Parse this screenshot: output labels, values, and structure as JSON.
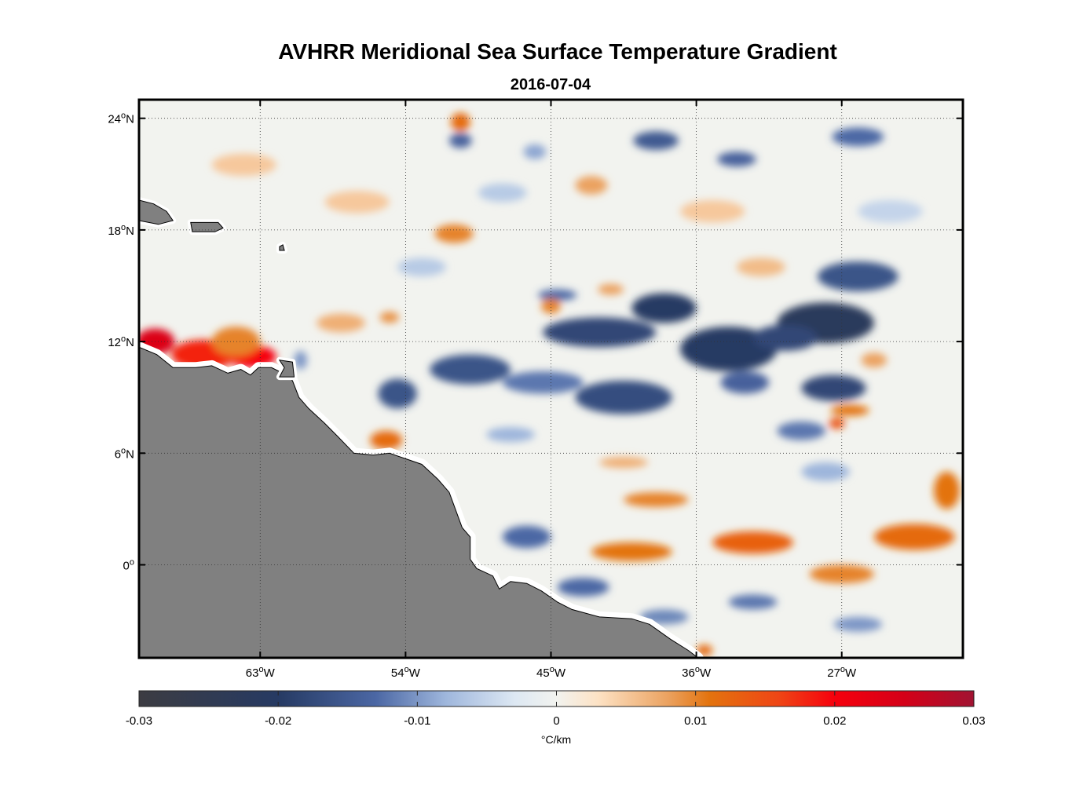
{
  "title": "AVHRR Meridional Sea Surface Temperature Gradient",
  "subtitle": "2016-07-04",
  "map": {
    "lon_range": [
      -70.5,
      -19.5
    ],
    "lat_range": [
      -5,
      25
    ],
    "lon_ticks": [
      {
        "value": -63,
        "label": "63",
        "suffix": "W"
      },
      {
        "value": -54,
        "label": "54",
        "suffix": "W"
      },
      {
        "value": -45,
        "label": "45",
        "suffix": "W"
      },
      {
        "value": -36,
        "label": "36",
        "suffix": "W"
      },
      {
        "value": -27,
        "label": "27",
        "suffix": "W"
      }
    ],
    "lat_ticks": [
      {
        "value": 24,
        "label": "24",
        "suffix": "N"
      },
      {
        "value": 18,
        "label": "18",
        "suffix": "N"
      },
      {
        "value": 12,
        "label": "12",
        "suffix": "N"
      },
      {
        "value": 6,
        "label": "6",
        "suffix": "N"
      },
      {
        "value": 0,
        "label": "0",
        "suffix": ""
      }
    ],
    "degree_symbol": "o",
    "land_color": "#808080",
    "coast_outline": "#000000",
    "grid_style": "dotted",
    "land_coast_lonlat": [
      [
        -70.5,
        11.7
      ],
      [
        -69.4,
        11.3
      ],
      [
        -68.4,
        10.6
      ],
      [
        -67,
        10.6
      ],
      [
        -66,
        10.7
      ],
      [
        -65,
        10.3
      ],
      [
        -64.2,
        10.5
      ],
      [
        -63.6,
        10.2
      ],
      [
        -63.1,
        10.6
      ],
      [
        -62.3,
        10.6
      ],
      [
        -61.6,
        10.3
      ],
      [
        -61.0,
        9.9
      ],
      [
        -60.6,
        9.0
      ],
      [
        -60.0,
        8.4
      ],
      [
        -59.0,
        7.6
      ],
      [
        -58.2,
        6.9
      ],
      [
        -57.2,
        6.0
      ],
      [
        -56.0,
        5.9
      ],
      [
        -55.0,
        6.0
      ],
      [
        -54.0,
        5.7
      ],
      [
        -53.0,
        5.4
      ],
      [
        -52.0,
        4.6
      ],
      [
        -51.3,
        3.9
      ],
      [
        -50.5,
        2.0
      ],
      [
        -50.0,
        1.5
      ],
      [
        -50.0,
        0.3
      ],
      [
        -49.6,
        -0.2
      ],
      [
        -48.6,
        -0.6
      ],
      [
        -48.2,
        -1.3
      ],
      [
        -47.5,
        -0.9
      ],
      [
        -46.5,
        -1.0
      ],
      [
        -45.6,
        -1.4
      ],
      [
        -44.6,
        -2.0
      ],
      [
        -43.7,
        -2.4
      ],
      [
        -42.0,
        -2.8
      ],
      [
        -40.0,
        -2.9
      ],
      [
        -38.9,
        -3.2
      ],
      [
        -37.6,
        -4.0
      ],
      [
        -36.5,
        -4.6
      ],
      [
        -35.9,
        -5.0
      ],
      [
        -70.5,
        -5.0
      ]
    ],
    "islands_lonlat": [
      [
        [
          -70.5,
          18.5
        ],
        [
          -69.3,
          18.3
        ],
        [
          -68.4,
          18.5
        ],
        [
          -68.8,
          19.0
        ],
        [
          -69.6,
          19.4
        ],
        [
          -70.5,
          19.6
        ]
      ],
      [
        [
          -67.3,
          18.4
        ],
        [
          -65.6,
          18.4
        ],
        [
          -65.3,
          18.1
        ],
        [
          -65.8,
          17.9
        ],
        [
          -67.2,
          17.9
        ]
      ],
      [
        [
          -61.8,
          17.1
        ],
        [
          -61.6,
          17.2
        ],
        [
          -61.5,
          16.9
        ],
        [
          -61.8,
          16.9
        ]
      ],
      [
        [
          -61.8,
          11.0
        ],
        [
          -61.0,
          10.9
        ],
        [
          -60.9,
          10.1
        ],
        [
          -61.8,
          10.1
        ],
        [
          -61.5,
          10.6
        ]
      ]
    ],
    "anomalies": [
      {
        "lon": -66.5,
        "lat": 11.3,
        "v": 0.018,
        "rlon": 2.0,
        "rlat": 0.8
      },
      {
        "lon": -69.5,
        "lat": 12.0,
        "v": 0.024,
        "rlon": 1.2,
        "rlat": 0.7
      },
      {
        "lon": -63.5,
        "lat": 11.2,
        "v": 0.02,
        "rlon": 1.5,
        "rlat": 0.6
      },
      {
        "lon": -64.5,
        "lat": 12.0,
        "v": 0.01,
        "rlon": 1.5,
        "rlat": 0.8
      },
      {
        "lon": -55.2,
        "lat": 6.7,
        "v": 0.012,
        "rlon": 1.0,
        "rlat": 0.5
      },
      {
        "lon": -50.6,
        "lat": 23.8,
        "v": 0.012,
        "rlon": 0.6,
        "rlat": 0.5
      },
      {
        "lon": -50.6,
        "lat": 22.8,
        "v": -0.014,
        "rlon": 0.7,
        "rlat": 0.4
      },
      {
        "lon": -51.0,
        "lat": 17.8,
        "v": 0.01,
        "rlon": 1.2,
        "rlat": 0.5
      },
      {
        "lon": -42.5,
        "lat": 20.4,
        "v": 0.008,
        "rlon": 1.0,
        "rlat": 0.5
      },
      {
        "lon": -41.3,
        "lat": 14.8,
        "v": 0.008,
        "rlon": 0.8,
        "rlat": 0.3
      },
      {
        "lon": -44.6,
        "lat": 14.5,
        "v": -0.013,
        "rlon": 1.2,
        "rlat": 0.3
      },
      {
        "lon": -45.0,
        "lat": 13.9,
        "v": 0.01,
        "rlon": 0.6,
        "rlat": 0.4
      },
      {
        "lon": -55.0,
        "lat": 13.3,
        "v": 0.009,
        "rlon": 0.6,
        "rlat": 0.3
      },
      {
        "lon": -38.5,
        "lat": 22.8,
        "v": -0.015,
        "rlon": 1.4,
        "rlat": 0.5
      },
      {
        "lon": -33.5,
        "lat": 21.8,
        "v": -0.014,
        "rlon": 1.2,
        "rlat": 0.4
      },
      {
        "lon": -26.0,
        "lat": 23.0,
        "v": -0.013,
        "rlon": 1.6,
        "rlat": 0.5
      },
      {
        "lon": -46.0,
        "lat": 22.2,
        "v": -0.009,
        "rlon": 0.7,
        "rlat": 0.4
      },
      {
        "lon": -42.0,
        "lat": 12.5,
        "v": -0.018,
        "rlon": 3.5,
        "rlat": 0.8
      },
      {
        "lon": -38.0,
        "lat": 13.8,
        "v": -0.02,
        "rlon": 2.0,
        "rlat": 0.8
      },
      {
        "lon": -28.0,
        "lat": 13.0,
        "v": -0.022,
        "rlon": 3.0,
        "rlat": 1.1
      },
      {
        "lon": -34.0,
        "lat": 11.6,
        "v": -0.02,
        "rlon": 3.0,
        "rlat": 1.2
      },
      {
        "lon": -26.0,
        "lat": 15.5,
        "v": -0.016,
        "rlon": 2.5,
        "rlat": 0.8
      },
      {
        "lon": -30.5,
        "lat": 12.2,
        "v": -0.018,
        "rlon": 2.0,
        "rlat": 0.7
      },
      {
        "lon": -50.0,
        "lat": 10.5,
        "v": -0.016,
        "rlon": 2.5,
        "rlat": 0.8
      },
      {
        "lon": -54.5,
        "lat": 9.2,
        "v": -0.016,
        "rlon": 1.2,
        "rlat": 0.8
      },
      {
        "lon": -40.5,
        "lat": 9.0,
        "v": -0.017,
        "rlon": 3.0,
        "rlat": 0.9
      },
      {
        "lon": -45.5,
        "lat": 9.8,
        "v": -0.012,
        "rlon": 2.5,
        "rlat": 0.6
      },
      {
        "lon": -27.5,
        "lat": 9.5,
        "v": -0.018,
        "rlon": 2.0,
        "rlat": 0.7
      },
      {
        "lon": -33.0,
        "lat": 9.8,
        "v": -0.014,
        "rlon": 1.5,
        "rlat": 0.6
      },
      {
        "lon": -29.5,
        "lat": 7.2,
        "v": -0.012,
        "rlon": 1.5,
        "rlat": 0.5
      },
      {
        "lon": -27.3,
        "lat": 7.6,
        "v": 0.014,
        "rlon": 0.5,
        "rlat": 0.3
      },
      {
        "lon": -26.5,
        "lat": 8.3,
        "v": 0.011,
        "rlon": 1.2,
        "rlat": 0.3
      },
      {
        "lon": -25.0,
        "lat": 11.0,
        "v": 0.008,
        "rlon": 0.8,
        "rlat": 0.4
      },
      {
        "lon": -38.5,
        "lat": 3.5,
        "v": 0.01,
        "rlon": 2.0,
        "rlat": 0.4
      },
      {
        "lon": -40.0,
        "lat": 0.7,
        "v": 0.011,
        "rlon": 2.5,
        "rlat": 0.5
      },
      {
        "lon": -32.5,
        "lat": 1.2,
        "v": 0.013,
        "rlon": 2.5,
        "rlat": 0.6
      },
      {
        "lon": -22.5,
        "lat": 1.5,
        "v": 0.012,
        "rlon": 2.5,
        "rlat": 0.7
      },
      {
        "lon": -27.0,
        "lat": -0.5,
        "v": 0.01,
        "rlon": 2.0,
        "rlat": 0.5
      },
      {
        "lon": -20.5,
        "lat": 4.0,
        "v": 0.011,
        "rlon": 0.8,
        "rlat": 1.0
      },
      {
        "lon": -46.5,
        "lat": 1.5,
        "v": -0.013,
        "rlon": 1.5,
        "rlat": 0.6
      },
      {
        "lon": -43.0,
        "lat": -1.2,
        "v": -0.013,
        "rlon": 1.6,
        "rlat": 0.5
      },
      {
        "lon": -38.0,
        "lat": -2.8,
        "v": -0.011,
        "rlon": 1.5,
        "rlat": 0.4
      },
      {
        "lon": -32.5,
        "lat": -2.0,
        "v": -0.012,
        "rlon": 1.5,
        "rlat": 0.4
      },
      {
        "lon": -26.0,
        "lat": -3.2,
        "v": -0.01,
        "rlon": 1.5,
        "rlat": 0.4
      },
      {
        "lon": -35.5,
        "lat": -4.6,
        "v": 0.012,
        "rlon": 0.5,
        "rlat": 0.3
      },
      {
        "lon": -40.5,
        "lat": 5.5,
        "v": 0.007,
        "rlon": 1.5,
        "rlat": 0.3
      },
      {
        "lon": -28.0,
        "lat": 5.0,
        "v": -0.008,
        "rlon": 1.5,
        "rlat": 0.5
      },
      {
        "lon": -47.5,
        "lat": 7.0,
        "v": -0.008,
        "rlon": 1.5,
        "rlat": 0.4
      },
      {
        "lon": -58.0,
        "lat": 13.0,
        "v": 0.007,
        "rlon": 1.5,
        "rlat": 0.5
      },
      {
        "lon": -60.5,
        "lat": 11.0,
        "v": -0.01,
        "rlon": 0.4,
        "rlat": 0.5
      },
      {
        "lon": -32.0,
        "lat": 16.0,
        "v": 0.006,
        "rlon": 1.5,
        "rlat": 0.5
      },
      {
        "lon": -53.0,
        "lat": 16.0,
        "v": -0.006,
        "rlon": 1.5,
        "rlat": 0.5
      },
      {
        "lon": -64.0,
        "lat": 21.5,
        "v": 0.005,
        "rlon": 2.0,
        "rlat": 0.6
      },
      {
        "lon": -57.0,
        "lat": 19.5,
        "v": 0.005,
        "rlon": 2.0,
        "rlat": 0.6
      },
      {
        "lon": -48.0,
        "lat": 20.0,
        "v": -0.006,
        "rlon": 1.5,
        "rlat": 0.5
      },
      {
        "lon": -35.0,
        "lat": 19.0,
        "v": 0.005,
        "rlon": 2.0,
        "rlat": 0.6
      },
      {
        "lon": -24.0,
        "lat": 19.0,
        "v": -0.005,
        "rlon": 2.0,
        "rlat": 0.6
      }
    ]
  },
  "colorbar": {
    "min": -0.03,
    "max": 0.03,
    "ticks": [
      "-0.03",
      "-0.02",
      "-0.01",
      "0",
      "0.01",
      "0.02",
      "0.03"
    ],
    "tick_values": [
      -0.03,
      -0.02,
      -0.01,
      0,
      0.01,
      0.02,
      0.03
    ],
    "label": "°C/km",
    "stops": [
      {
        "v": -0.03,
        "color": "#3c3c42"
      },
      {
        "v": -0.02,
        "color": "#263a63"
      },
      {
        "v": -0.013,
        "color": "#4b67a4"
      },
      {
        "v": -0.008,
        "color": "#9eb6dc"
      },
      {
        "v": -0.003,
        "color": "#dde8f3"
      },
      {
        "v": 0,
        "color": "#f2f3ef"
      },
      {
        "v": 0.003,
        "color": "#fde2c4"
      },
      {
        "v": 0.008,
        "color": "#eba260"
      },
      {
        "v": 0.011,
        "color": "#e3730e"
      },
      {
        "v": 0.016,
        "color": "#ef4515"
      },
      {
        "v": 0.02,
        "color": "#f6000d"
      },
      {
        "v": 0.025,
        "color": "#d40018"
      },
      {
        "v": 0.03,
        "color": "#a11332"
      }
    ]
  }
}
